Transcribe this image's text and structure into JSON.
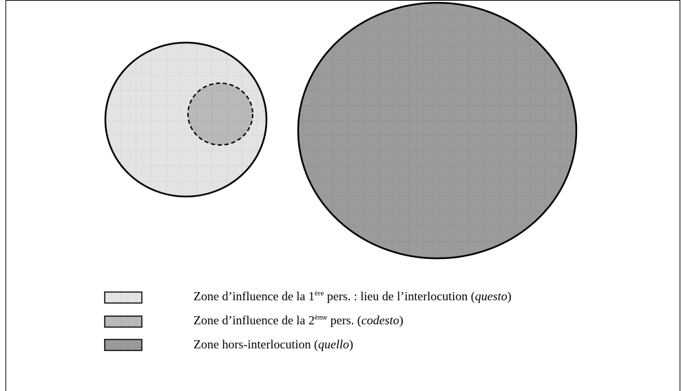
{
  "legend": [
    {
      "parts": [
        {
          "text": "Zone d’influence de la 1"
        },
        {
          "text": "ère",
          "sup": true
        },
        {
          "text": " pers. : lieu de l’interlocution ("
        },
        {
          "text": "questo",
          "italic": true
        },
        {
          "text": ")"
        }
      ]
    },
    {
      "parts": [
        {
          "text": "Zone d’influence de la 2"
        },
        {
          "text": "ème",
          "sup": true
        },
        {
          "text": " pers. ("
        },
        {
          "text": "codesto",
          "italic": true
        },
        {
          "text": ")"
        }
      ]
    },
    {
      "parts": [
        {
          "text": "Zone hors-interlocution ("
        },
        {
          "text": "quello",
          "italic": true
        },
        {
          "text": ")"
        }
      ]
    }
  ]
}
